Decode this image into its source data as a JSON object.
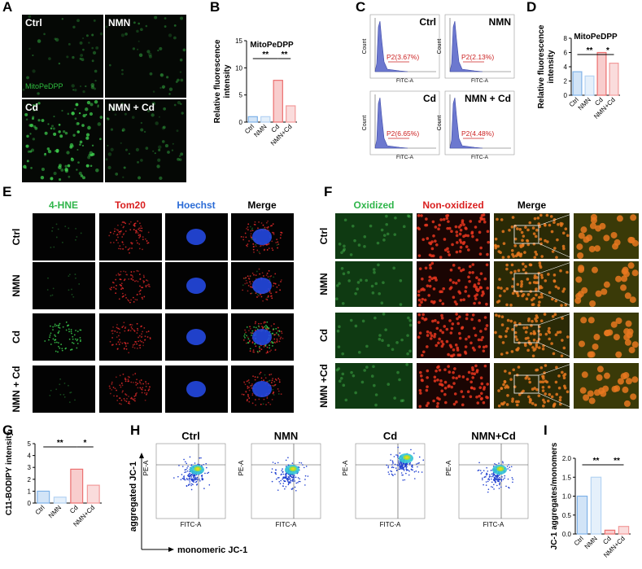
{
  "panel_labels": [
    "A",
    "B",
    "C",
    "D",
    "E",
    "F",
    "G",
    "H",
    "I"
  ],
  "panel_a": {
    "groups": [
      "Ctrl",
      "NMN",
      "Cd",
      "NMN + Cd"
    ],
    "stain": "MitoPeDPP"
  },
  "panel_c": {
    "groups": [
      "Ctrl",
      "NMN",
      "Cd",
      "NMN + Cd"
    ],
    "gates": [
      "P2(3.67%)",
      "P2(2.13%)",
      "P2(6.65%)",
      "P2(4.48%)"
    ],
    "y_label": "Count",
    "x_label": "FITC-A"
  },
  "panel_e": {
    "channels": [
      "4-HNE",
      "Tom20",
      "Hoechst",
      "Merge"
    ],
    "groups": [
      "Ctrl",
      "NMN",
      "Cd",
      "NMN + Cd"
    ]
  },
  "panel_f": {
    "channels": [
      "Oxidized",
      "Non-oxidized",
      "Merge"
    ],
    "groups": [
      "Ctrl",
      "NMN",
      "Cd",
      "NMN +Cd"
    ]
  },
  "panel_h": {
    "groups": [
      "Ctrl",
      "NMN",
      "Cd",
      "NMN+Cd"
    ],
    "y_label": "PE-A",
    "x_label": "FITC-A",
    "y_title": "aggregated JC-1",
    "x_title": "monomeric JC-1"
  },
  "chart_data": [
    {
      "type": "bar",
      "title": "MitoPeDPP",
      "y_label": [
        "Relative fluorescence",
        "intensity"
      ],
      "categories": [
        "Ctrl",
        "NMN",
        "Cd",
        "NMN+Cd"
      ],
      "values": [
        1.0,
        1.0,
        7.7,
        3.0
      ],
      "colors": [
        "#7fb2e8",
        "#b5d3f3",
        "#ec6f6f",
        "#f29a9a"
      ],
      "ylim": [
        0,
        15
      ],
      "yticks": [
        0,
        5,
        10,
        15
      ],
      "significance": [
        "**",
        "**"
      ]
    },
    {
      "type": "bar",
      "title": "MitoPeDPP",
      "y_label": [
        "Relative fluorescence",
        "intensity"
      ],
      "categories": [
        "Ctrl",
        "NMN",
        "Cd",
        "NMN+Cd"
      ],
      "values": [
        3.3,
        2.7,
        6.0,
        4.5
      ],
      "colors": [
        "#7fb2e8",
        "#b5d3f3",
        "#ec6f6f",
        "#f29a9a"
      ],
      "ylim": [
        0,
        8
      ],
      "yticks": [
        0,
        2,
        4,
        6,
        8
      ],
      "significance": [
        "**",
        "*"
      ]
    },
    {
      "type": "bar",
      "y_label": [
        "C11-BODIPY intensity"
      ],
      "categories": [
        "Ctrl",
        "NMN",
        "Cd",
        "NMN+Cd"
      ],
      "values": [
        1.0,
        0.5,
        2.85,
        1.5
      ],
      "colors": [
        "#7fb2e8",
        "#b5d3f3",
        "#ec6f6f",
        "#f29a9a"
      ],
      "ylim": [
        0,
        5
      ],
      "yticks": [
        0,
        1,
        2,
        3,
        4,
        5
      ],
      "significance": [
        "**",
        "*"
      ]
    },
    {
      "type": "bar",
      "y_label": [
        "JC-1 aggregates/monomers"
      ],
      "categories": [
        "Ctrl",
        "NMN",
        "Cd",
        "NMN+Cd"
      ],
      "values": [
        1.0,
        1.5,
        0.1,
        0.2
      ],
      "colors": [
        "#7fb2e8",
        "#b5d3f3",
        "#ec6f6f",
        "#f29a9a"
      ],
      "ylim": [
        0,
        2
      ],
      "yticks": [
        {
          "value": 0,
          "label": "0.0"
        },
        0.5,
        {
          "value": 1,
          "label": "1.0"
        },
        1.5,
        {
          "value": 2,
          "label": "2.0"
        }
      ],
      "significance": [
        "**",
        "**"
      ]
    }
  ]
}
